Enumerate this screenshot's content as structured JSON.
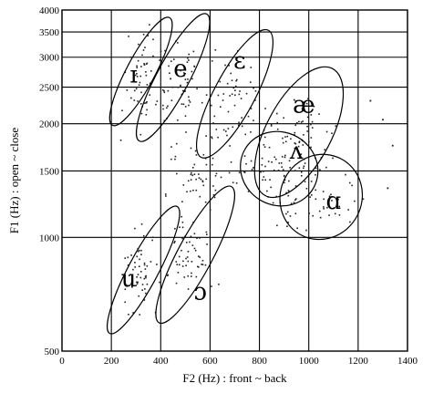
{
  "chart_data": {
    "type": "scatter",
    "title": "",
    "xlabel": "F2 (Hz) : front ~ back",
    "ylabel": "F1 (Hz) : open ~ close",
    "x_ticks": [
      0,
      200,
      400,
      600,
      800,
      1000,
      1200,
      1400
    ],
    "x_tick_labels": [
      "0",
      "200",
      "400",
      "600",
      "800",
      "1000",
      "1200",
      "1400"
    ],
    "y_ticks": [
      500,
      1000,
      1500,
      2000,
      2500,
      3000,
      3500,
      4000
    ],
    "y_tick_labels": [
      "500",
      "1000",
      "1500",
      "2000",
      "2500",
      "3000",
      "3500",
      "4000"
    ],
    "xlim": [
      0,
      1400
    ],
    "ylim": [
      500,
      4000
    ],
    "y_scale": "log",
    "grid": true,
    "vowel_regions": [
      {
        "label": "ɪ",
        "center": [
          320,
          2750
        ],
        "label_pos": [
          290,
          2700
        ],
        "rx": 105,
        "ry_ratio": 1.45
      },
      {
        "label": "e",
        "center": [
          450,
          2650
        ],
        "label_pos": [
          480,
          2800
        ],
        "rx": 120,
        "ry_ratio": 1.55
      },
      {
        "label": "ɛ",
        "center": [
          700,
          2400
        ],
        "label_pos": [
          720,
          2950
        ],
        "rx": 150,
        "ry_ratio": 1.55
      },
      {
        "label": "æ",
        "center": [
          960,
          1900
        ],
        "label_pos": [
          980,
          2250
        ],
        "rx": 240,
        "ry_ratio": 1.55
      },
      {
        "label": "ʌ",
        "center": [
          880,
          1520
        ],
        "label_pos": [
          950,
          1700
        ],
        "rx": 290,
        "ry_ratio": 1.25
      },
      {
        "label": "ɑ",
        "center": [
          1050,
          1280
        ],
        "label_pos": [
          1100,
          1250
        ],
        "rx": 300,
        "ry_ratio": 1.3
      },
      {
        "label": "u",
        "center": [
          330,
          820
        ],
        "label_pos": [
          270,
          780
        ],
        "rx": 110,
        "ry_ratio": 1.55
      },
      {
        "label": "ɔ",
        "center": [
          540,
          900
        ],
        "label_pos": [
          560,
          720
        ],
        "rx": 130,
        "ry_ratio": 1.6
      }
    ],
    "scatter_clusters": [
      {
        "center": [
          320,
          2600
        ],
        "spread_x": 70,
        "spread_y": 0.35,
        "n": 55
      },
      {
        "center": [
          470,
          2500
        ],
        "spread_x": 80,
        "spread_y": 0.35,
        "n": 55
      },
      {
        "center": [
          700,
          2300
        ],
        "spread_x": 110,
        "spread_y": 0.33,
        "n": 55
      },
      {
        "center": [
          950,
          1850
        ],
        "spread_x": 170,
        "spread_y": 0.3,
        "n": 60
      },
      {
        "center": [
          850,
          1500
        ],
        "spread_x": 200,
        "spread_y": 0.2,
        "n": 55
      },
      {
        "center": [
          1000,
          1250
        ],
        "spread_x": 200,
        "spread_y": 0.22,
        "n": 55
      },
      {
        "center": [
          320,
          800
        ],
        "spread_x": 70,
        "spread_y": 0.3,
        "n": 55
      },
      {
        "center": [
          520,
          880
        ],
        "spread_x": 90,
        "spread_y": 0.3,
        "n": 55
      },
      {
        "center": [
          550,
          1500
        ],
        "spread_x": 120,
        "spread_y": 0.3,
        "n": 50
      }
    ]
  }
}
